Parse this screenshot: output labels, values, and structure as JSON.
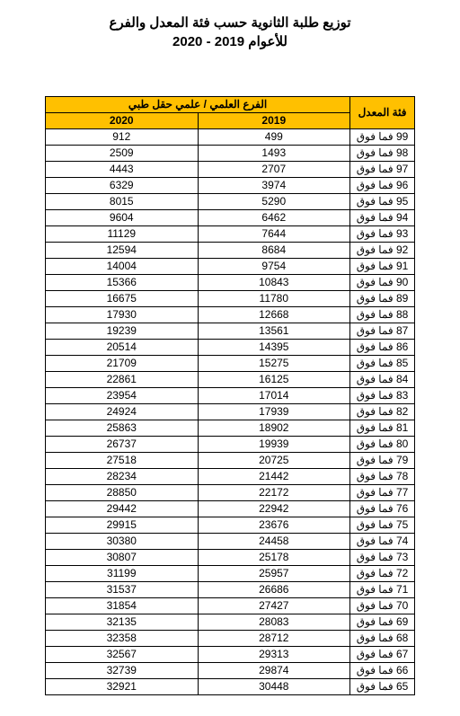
{
  "title": {
    "line1": "توزيع طلبة الثانوية حسب فئة المعدل والفرع",
    "line2": "للأعوام 2019 - 2020"
  },
  "branch_header": "الفرع العلمي / علمي حقل طبي",
  "grade_header": "فئة المعدل",
  "years": [
    "2019",
    "2020"
  ],
  "grade_suffix": " فما فوق",
  "colors": {
    "header_bg": "#ffc000",
    "border": "#000000",
    "text": "#000000",
    "background": "#ffffff"
  },
  "rows": [
    {
      "grade": "99",
      "y2019": "499",
      "y2020": "912"
    },
    {
      "grade": "98",
      "y2019": "1493",
      "y2020": "2509"
    },
    {
      "grade": "97",
      "y2019": "2707",
      "y2020": "4443"
    },
    {
      "grade": "96",
      "y2019": "3974",
      "y2020": "6329"
    },
    {
      "grade": "95",
      "y2019": "5290",
      "y2020": "8015"
    },
    {
      "grade": "94",
      "y2019": "6462",
      "y2020": "9604"
    },
    {
      "grade": "93",
      "y2019": "7644",
      "y2020": "11129"
    },
    {
      "grade": "92",
      "y2019": "8684",
      "y2020": "12594"
    },
    {
      "grade": "91",
      "y2019": "9754",
      "y2020": "14004"
    },
    {
      "grade": "90",
      "y2019": "10843",
      "y2020": "15366"
    },
    {
      "grade": "89",
      "y2019": "11780",
      "y2020": "16675"
    },
    {
      "grade": "88",
      "y2019": "12668",
      "y2020": "17930"
    },
    {
      "grade": "87",
      "y2019": "13561",
      "y2020": "19239"
    },
    {
      "grade": "86",
      "y2019": "14395",
      "y2020": "20514"
    },
    {
      "grade": "85",
      "y2019": "15275",
      "y2020": "21709"
    },
    {
      "grade": "84",
      "y2019": "16125",
      "y2020": "22861"
    },
    {
      "grade": "83",
      "y2019": "17014",
      "y2020": "23954"
    },
    {
      "grade": "82",
      "y2019": "17939",
      "y2020": "24924"
    },
    {
      "grade": "81",
      "y2019": "18902",
      "y2020": "25863"
    },
    {
      "grade": "80",
      "y2019": "19939",
      "y2020": "26737"
    },
    {
      "grade": "79",
      "y2019": "20725",
      "y2020": "27518"
    },
    {
      "grade": "78",
      "y2019": "21442",
      "y2020": "28234"
    },
    {
      "grade": "77",
      "y2019": "22172",
      "y2020": "28850"
    },
    {
      "grade": "76",
      "y2019": "22942",
      "y2020": "29442"
    },
    {
      "grade": "75",
      "y2019": "23676",
      "y2020": "29915"
    },
    {
      "grade": "74",
      "y2019": "24458",
      "y2020": "30380"
    },
    {
      "grade": "73",
      "y2019": "25178",
      "y2020": "30807"
    },
    {
      "grade": "72",
      "y2019": "25957",
      "y2020": "31199"
    },
    {
      "grade": "71",
      "y2019": "26686",
      "y2020": "31537"
    },
    {
      "grade": "70",
      "y2019": "27427",
      "y2020": "31854"
    },
    {
      "grade": "69",
      "y2019": "28083",
      "y2020": "32135"
    },
    {
      "grade": "68",
      "y2019": "28712",
      "y2020": "32358"
    },
    {
      "grade": "67",
      "y2019": "29313",
      "y2020": "32567"
    },
    {
      "grade": "66",
      "y2019": "29874",
      "y2020": "32739"
    },
    {
      "grade": "65",
      "y2019": "30448",
      "y2020": "32921"
    }
  ]
}
